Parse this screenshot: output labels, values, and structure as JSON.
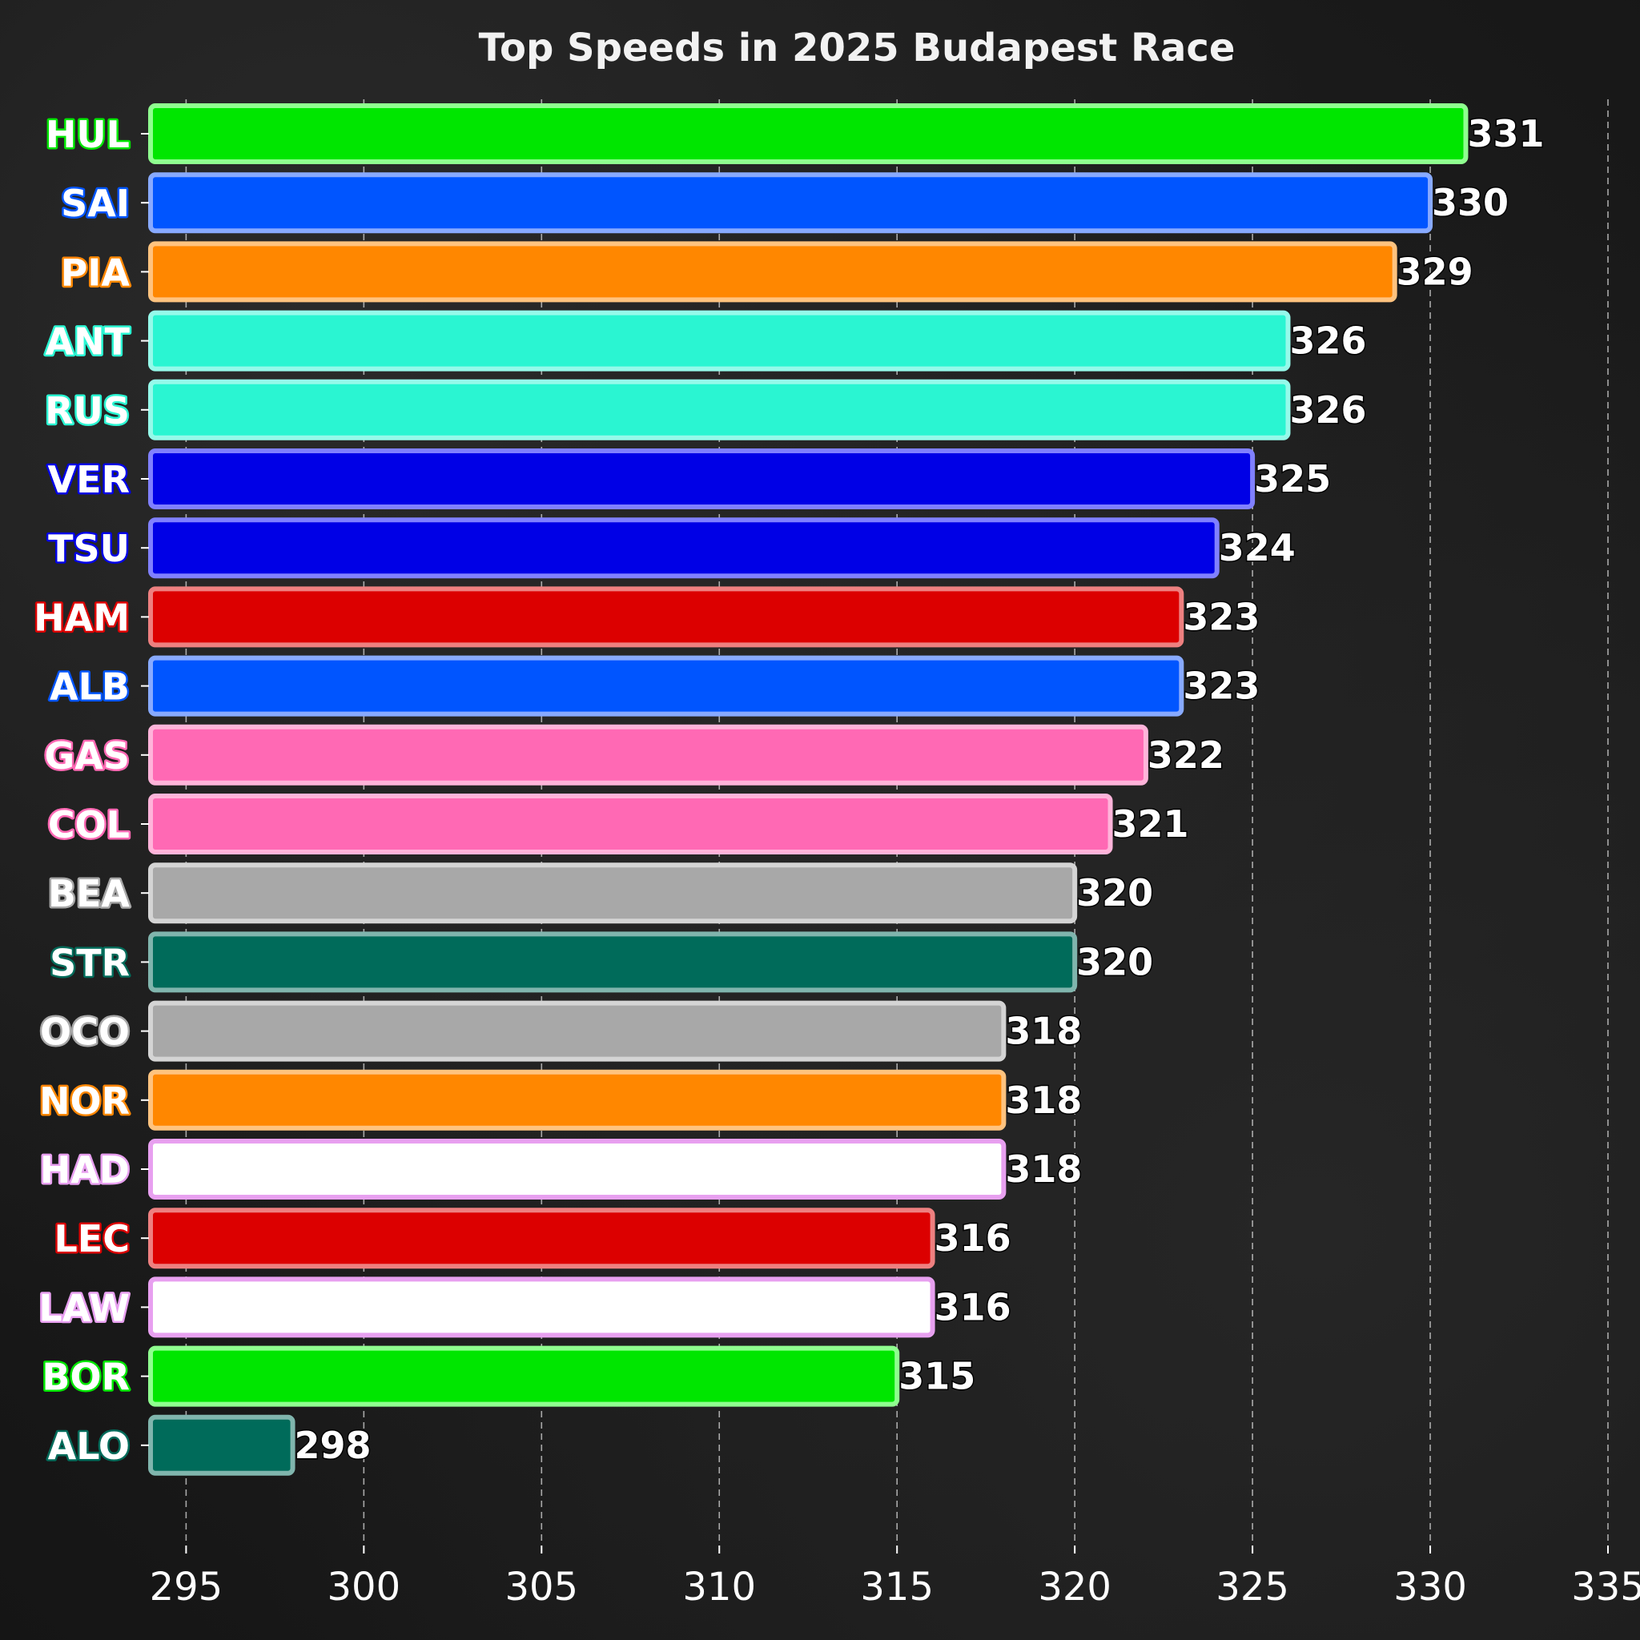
{
  "chart_data": {
    "type": "bar",
    "orientation": "horizontal",
    "title": "Top Speeds in 2025 Budapest Race",
    "xlabel": "",
    "ylabel": "",
    "xlim": [
      294,
      335
    ],
    "xticks": [
      295,
      300,
      305,
      310,
      315,
      320,
      325,
      330,
      335
    ],
    "grid": "x-dashed",
    "categories": [
      "HUL",
      "SAI",
      "PIA",
      "ANT",
      "RUS",
      "VER",
      "TSU",
      "HAM",
      "ALB",
      "GAS",
      "COL",
      "BEA",
      "STR",
      "OCO",
      "NOR",
      "HAD",
      "LEC",
      "LAW",
      "BOR",
      "ALO"
    ],
    "values": [
      331,
      330,
      329,
      326,
      326,
      325,
      324,
      323,
      323,
      322,
      321,
      320,
      320,
      318,
      318,
      318,
      316,
      316,
      315,
      298
    ],
    "colors": [
      "#00e600",
      "#0055ff",
      "#ff8700",
      "#2af5d2",
      "#2af5d2",
      "#0000e6",
      "#0000e6",
      "#dc0000",
      "#0055ff",
      "#ff69b4",
      "#ff69b4",
      "#a8a8a8",
      "#006b5a",
      "#a8a8a8",
      "#ff8700",
      "#ffffff",
      "#dc0000",
      "#ffffff",
      "#00e600",
      "#006b5a"
    ],
    "edge_colors": [
      "#8fff8f",
      "#88aaff",
      "#ffc37f",
      "#95faea",
      "#95faea",
      "#8080ff",
      "#8080ff",
      "#ee8080",
      "#88aaff",
      "#ffb4da",
      "#ffb4da",
      "#d4d4d4",
      "#80b5ad",
      "#d4d4d4",
      "#ffc37f",
      "#e8a0f0",
      "#ee8080",
      "#e8a0f0",
      "#8fff8f",
      "#80b5ad"
    ]
  }
}
